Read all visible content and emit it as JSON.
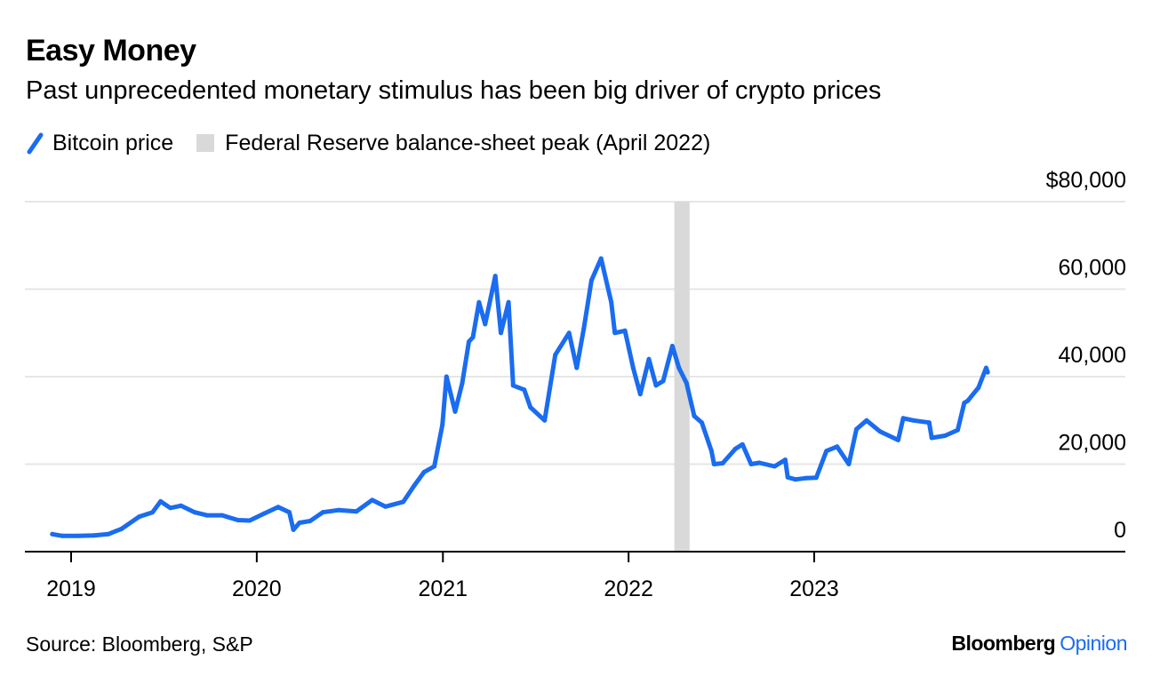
{
  "title": "Easy Money",
  "subtitle": "Past unprecedented monetary stimulus has been big driver of crypto prices",
  "legend": {
    "line_label": "Bitcoin price",
    "band_label": "Federal Reserve balance-sheet peak (April 2022)"
  },
  "source": "Source: Bloomberg, S&P",
  "brand": {
    "name": "Bloomberg",
    "sub": "Opinion"
  },
  "colors": {
    "line": "#1a6cf0",
    "band": "#d9d9d9",
    "grid": "#e6e6e6",
    "axis": "#000000"
  },
  "chart_data": {
    "type": "line",
    "ylim": [
      0,
      80000
    ],
    "yticks": [
      {
        "value": 0,
        "label": "0"
      },
      {
        "value": 20000,
        "label": "20,000"
      },
      {
        "value": 40000,
        "label": "40,000"
      },
      {
        "value": 60000,
        "label": "60,000"
      },
      {
        "value": 80000,
        "label": "$80,000"
      }
    ],
    "xlim": [
      "2018-09-01",
      "2024-04-01"
    ],
    "xticks": [
      {
        "value": "2019-01-01",
        "label": "2019"
      },
      {
        "value": "2020-01-01",
        "label": "2020"
      },
      {
        "value": "2021-01-01",
        "label": "2021"
      },
      {
        "value": "2022-01-01",
        "label": "2022"
      },
      {
        "value": "2023-01-01",
        "label": "2023"
      }
    ],
    "band": {
      "start": "2022-04-01",
      "end": "2022-05-01"
    },
    "series": [
      {
        "name": "Bitcoin price",
        "x": [
          "2018-11-25",
          "2018-12-15",
          "2019-01-15",
          "2019-02-15",
          "2019-03-15",
          "2019-04-10",
          "2019-05-15",
          "2019-06-10",
          "2019-06-26",
          "2019-07-15",
          "2019-08-05",
          "2019-09-01",
          "2019-09-25",
          "2019-10-25",
          "2019-11-25",
          "2019-12-18",
          "2020-01-15",
          "2020-02-12",
          "2020-03-05",
          "2020-03-13",
          "2020-03-25",
          "2020-04-15",
          "2020-05-10",
          "2020-06-10",
          "2020-07-15",
          "2020-08-15",
          "2020-09-10",
          "2020-10-15",
          "2020-11-05",
          "2020-11-25",
          "2020-12-15",
          "2020-12-31",
          "2021-01-08",
          "2021-01-25",
          "2021-02-08",
          "2021-02-21",
          "2021-03-01",
          "2021-03-13",
          "2021-03-25",
          "2021-04-14",
          "2021-04-25",
          "2021-05-10",
          "2021-05-19",
          "2021-06-10",
          "2021-06-22",
          "2021-07-20",
          "2021-08-10",
          "2021-09-06",
          "2021-09-21",
          "2021-10-05",
          "2021-10-20",
          "2021-11-08",
          "2021-11-28",
          "2021-12-05",
          "2021-12-25",
          "2022-01-10",
          "2022-01-24",
          "2022-02-10",
          "2022-02-24",
          "2022-03-10",
          "2022-03-28",
          "2022-04-10",
          "2022-04-25",
          "2022-05-10",
          "2022-05-25",
          "2022-06-13",
          "2022-06-18",
          "2022-07-05",
          "2022-07-30",
          "2022-08-13",
          "2022-08-30",
          "2022-09-15",
          "2022-10-15",
          "2022-11-05",
          "2022-11-10",
          "2022-11-25",
          "2022-12-15",
          "2023-01-05",
          "2023-01-25",
          "2023-02-15",
          "2023-03-10",
          "2023-03-25",
          "2023-04-14",
          "2023-05-10",
          "2023-06-15",
          "2023-06-25",
          "2023-07-15",
          "2023-08-15",
          "2023-08-20",
          "2023-09-15",
          "2023-10-10",
          "2023-10-23",
          "2023-10-30",
          "2023-11-20",
          "2023-12-05",
          "2023-12-08"
        ],
        "values": [
          4000,
          3600,
          3600,
          3700,
          4000,
          5200,
          8000,
          9000,
          11500,
          10000,
          10500,
          9000,
          8300,
          8300,
          7200,
          7100,
          8700,
          10200,
          9000,
          5000,
          6600,
          7000,
          9000,
          9500,
          9200,
          11800,
          10300,
          11400,
          15000,
          18200,
          19500,
          29000,
          40000,
          32000,
          38500,
          48000,
          49000,
          57000,
          52000,
          63000,
          50000,
          57000,
          38000,
          37000,
          33000,
          30000,
          45000,
          50000,
          42000,
          51000,
          62000,
          67000,
          57000,
          50000,
          50500,
          42000,
          36000,
          44000,
          38000,
          39000,
          47000,
          42000,
          38500,
          31000,
          29500,
          23000,
          20000,
          20200,
          23500,
          24500,
          20000,
          20300,
          19500,
          21000,
          17000,
          16500,
          16800,
          16900,
          23000,
          24000,
          20000,
          28000,
          30000,
          27500,
          25500,
          30500,
          30000,
          29500,
          26000,
          26500,
          27800,
          34000,
          34500,
          37500,
          42000,
          41000
        ]
      }
    ]
  }
}
